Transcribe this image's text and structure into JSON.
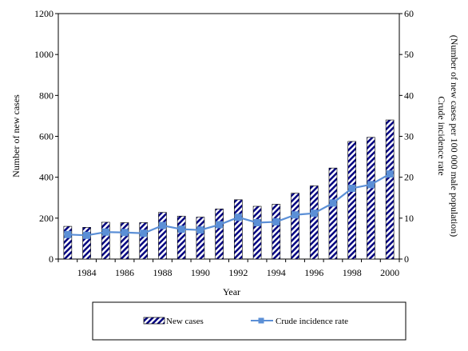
{
  "chart_data": {
    "type": "bar",
    "title": "",
    "xlabel": "Year",
    "ylabel": "Number of new cases",
    "y2label_line1": "Crude incidence  rate",
    "y2label_line2": "(Number of new cases per 100 000 male population)",
    "ylim": [
      0,
      1200
    ],
    "y2lim": [
      0,
      60
    ],
    "yticks": [
      "0",
      "200",
      "400",
      "600",
      "800",
      "1000",
      "1200"
    ],
    "y2ticks": [
      "0",
      "10",
      "20",
      "30",
      "40",
      "50",
      "60"
    ],
    "categories": [
      "1983",
      "1984",
      "1985",
      "1986",
      "1987",
      "1988",
      "1989",
      "1990",
      "1991",
      "1992",
      "1993",
      "1994",
      "1995",
      "1996",
      "1997",
      "1998",
      "1999",
      "2000"
    ],
    "x_tick_labels": [
      "1984",
      "1986",
      "1988",
      "1990",
      "1992",
      "1994",
      "1996",
      "1998",
      "2000"
    ],
    "grid": false,
    "legend_position": "bottom",
    "series": [
      {
        "name": "New cases",
        "type": "bar",
        "axis": "left",
        "pattern": "diagonal-stripes",
        "color": "#000080",
        "values": [
          160,
          155,
          180,
          178,
          178,
          228,
          210,
          205,
          245,
          290,
          258,
          268,
          322,
          358,
          445,
          575,
          595,
          680
        ]
      },
      {
        "name": "Crude incidence rate",
        "type": "line",
        "axis": "right",
        "color": "#5b8fd6",
        "marker": "square",
        "values": [
          6.0,
          5.8,
          6.6,
          6.5,
          6.3,
          8.2,
          7.3,
          7.1,
          8.4,
          10.2,
          8.9,
          9.1,
          10.8,
          11.2,
          13.7,
          17.3,
          18.2,
          20.8
        ]
      }
    ]
  }
}
